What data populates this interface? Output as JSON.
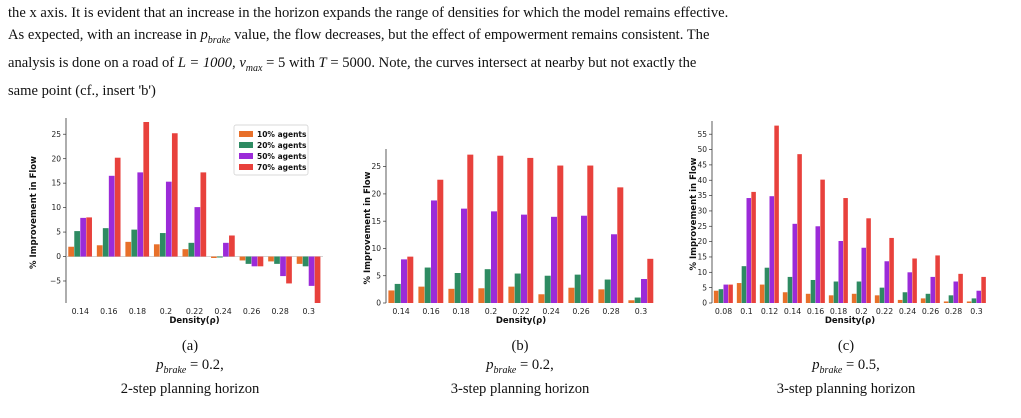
{
  "paragraph": {
    "line1": "the x axis. It is evident that an increase in the horizon expands the range of densities for which the model remains effective.",
    "line2a": "As expected, with an increase in ",
    "var_p": "p",
    "var_sub": "brake",
    "line2b": " value, the flow decreases, but the effect of empowerment remains consistent. The",
    "line3a": "analysis is done on a road of ",
    "line3b": "L = 1000, ",
    "line3c": "v",
    "line3d": "max",
    "line3e": " = 5 with ",
    "line3f": "T",
    "line3g": " = 5000. Note, the curves intersect at nearby but not exactly the",
    "line4": "same point (cf., insert 'b')"
  },
  "colors": {
    "agents10": "#e8702a",
    "agents20": "#2e8b62",
    "agents50": "#9b2bd8",
    "agents70": "#e8413c"
  },
  "legend": [
    "10% agents",
    "20% agents",
    "50% agents",
    "70% agents"
  ],
  "captions": [
    {
      "label": "(a)",
      "p": "p",
      "sub": "brake",
      "value": " = 0.2,",
      "horizon": "2-step planning horizon"
    },
    {
      "label": "(b)",
      "p": "p",
      "sub": "brake",
      "value": " = 0.2,",
      "horizon": "3-step planning horizon"
    },
    {
      "label": "(c)",
      "p": "p",
      "sub": "brake",
      "value": " = 0.5,",
      "horizon": "3-step planning horizon"
    }
  ],
  "chart_data": [
    {
      "type": "bar",
      "xlabel": "Density(ρ)",
      "ylabel": "% Improvement in Flow",
      "ylim": [
        -9.5,
        27.5
      ],
      "yticks": [
        -5,
        0,
        5,
        10,
        15,
        20,
        25
      ],
      "legend_position": "top-right",
      "categories": [
        "0.14",
        "0.16",
        "0.18",
        "0.2",
        "0.22",
        "0.24",
        "0.26",
        "0.28",
        "0.3"
      ],
      "series": [
        {
          "name": "10% agents",
          "values": [
            2.0,
            2.3,
            3.0,
            2.5,
            1.5,
            -0.3,
            -0.8,
            -1.0,
            -1.5
          ]
        },
        {
          "name": "20% agents",
          "values": [
            5.2,
            5.8,
            5.5,
            4.8,
            2.8,
            -0.2,
            -1.5,
            -1.5,
            -2.0
          ]
        },
        {
          "name": "50% agents",
          "values": [
            7.9,
            16.5,
            17.2,
            15.3,
            10.1,
            2.8,
            -2.0,
            -4.0,
            -6.0
          ]
        },
        {
          "name": "70% agents",
          "values": [
            8.0,
            20.2,
            27.5,
            25.2,
            17.2,
            4.3,
            -2.0,
            -5.5,
            -9.5
          ]
        }
      ]
    },
    {
      "type": "bar",
      "xlabel": "Density(ρ)",
      "ylabel": "% Improvement in Flow",
      "ylim": [
        0,
        27.5
      ],
      "yticks": [
        0,
        5,
        10,
        15,
        20,
        25
      ],
      "categories": [
        "0.14",
        "0.16",
        "0.18",
        "0.2",
        "0.22",
        "0.24",
        "0.26",
        "0.28",
        "0.3"
      ],
      "series": [
        {
          "name": "10% agents",
          "values": [
            2.3,
            3.0,
            2.6,
            2.7,
            3.0,
            1.6,
            2.8,
            2.5,
            0.5
          ]
        },
        {
          "name": "20% agents",
          "values": [
            3.5,
            6.5,
            5.5,
            6.2,
            5.4,
            5.0,
            5.2,
            4.3,
            1.0
          ]
        },
        {
          "name": "50% agents",
          "values": [
            8.0,
            18.8,
            17.3,
            16.8,
            16.2,
            15.8,
            16.0,
            12.6,
            4.4
          ]
        },
        {
          "name": "70% agents",
          "values": [
            8.5,
            22.6,
            27.2,
            27.0,
            26.6,
            25.2,
            25.2,
            21.2,
            8.1
          ]
        }
      ]
    },
    {
      "type": "bar",
      "xlabel": "Density(ρ)",
      "ylabel": "% Improvement in Flow",
      "ylim": [
        0,
        58
      ],
      "yticks": [
        0,
        5,
        10,
        15,
        20,
        25,
        30,
        35,
        40,
        45,
        50,
        55
      ],
      "categories": [
        "0.08",
        "0.1",
        "0.12",
        "0.14",
        "0.16",
        "0.18",
        "0.2",
        "0.22",
        "0.24",
        "0.26",
        "0.28",
        "0.3"
      ],
      "series": [
        {
          "name": "10% agents",
          "values": [
            4.0,
            6.5,
            6.0,
            3.5,
            3.0,
            2.5,
            3.0,
            2.5,
            1.0,
            1.5,
            0.5,
            0.5
          ]
        },
        {
          "name": "20% agents",
          "values": [
            4.5,
            12.0,
            11.5,
            8.5,
            7.5,
            7.0,
            7.0,
            5.0,
            3.5,
            3.0,
            2.5,
            1.5
          ]
        },
        {
          "name": "50% agents",
          "values": [
            6.0,
            34.2,
            34.8,
            25.8,
            25.0,
            20.2,
            18.0,
            13.6,
            10.0,
            8.5,
            7.0,
            4.0
          ]
        },
        {
          "name": "70% agents",
          "values": [
            6.0,
            36.2,
            57.8,
            48.5,
            40.2,
            34.2,
            27.6,
            21.2,
            14.5,
            15.5,
            9.5,
            8.5
          ]
        }
      ]
    }
  ]
}
